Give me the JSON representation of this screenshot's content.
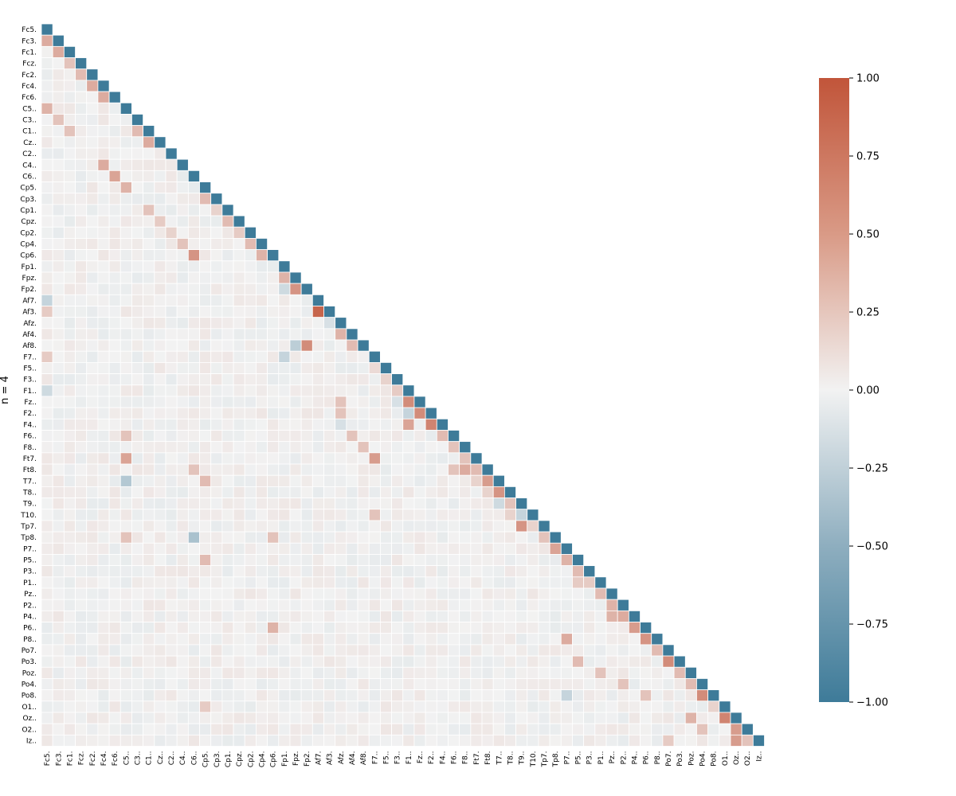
{
  "chart_data": {
    "type": "heatmap",
    "mask": "upper-triangle",
    "ylabel": "n = 4",
    "labels": [
      "Fc5.",
      "Fc3.",
      "Fc1.",
      "Fcz.",
      "Fc2.",
      "Fc4.",
      "Fc6.",
      "C5..",
      "C3..",
      "C1..",
      "Cz..",
      "C2..",
      "C4..",
      "C6..",
      "Cp5.",
      "Cp3.",
      "Cp1.",
      "Cpz.",
      "Cp2.",
      "Cp4.",
      "Cp6.",
      "Fp1.",
      "Fpz.",
      "Fp2.",
      "Af7.",
      "Af3.",
      "Afz.",
      "Af4.",
      "Af8.",
      "F7..",
      "F5..",
      "F3..",
      "F1..",
      "Fz..",
      "F2..",
      "F4..",
      "F6..",
      "F8..",
      "Ft7.",
      "Ft8.",
      "T7..",
      "T8..",
      "T9..",
      "T10.",
      "Tp7.",
      "Tp8.",
      "P7..",
      "P5..",
      "P3..",
      "P1..",
      "Pz..",
      "P2..",
      "P4..",
      "P6..",
      "P8..",
      "Po7.",
      "Po3.",
      "Poz.",
      "Po4.",
      "Po8.",
      "O1..",
      "Oz..",
      "O2..",
      "Iz.."
    ],
    "colorbar": {
      "min": -1.0,
      "max": 1.0,
      "ticks": [
        "1.00",
        "0.75",
        "0.50",
        "0.25",
        "0.00",
        "−0.25",
        "−0.50",
        "−0.75",
        "−1.00"
      ]
    },
    "colors": {
      "negative": "#3e7b99",
      "center": "#f2f2f2",
      "positive": "#c1553a"
    },
    "strong_values": [
      [
        1,
        0,
        0.45
      ],
      [
        2,
        1,
        0.45
      ],
      [
        3,
        2,
        0.3
      ],
      [
        4,
        3,
        0.35
      ],
      [
        5,
        4,
        0.45
      ],
      [
        6,
        5,
        0.45
      ],
      [
        7,
        0,
        0.4
      ],
      [
        8,
        1,
        0.3
      ],
      [
        9,
        2,
        0.3
      ],
      [
        9,
        8,
        0.35
      ],
      [
        10,
        9,
        0.45
      ],
      [
        12,
        5,
        0.45
      ],
      [
        13,
        6,
        0.5
      ],
      [
        14,
        7,
        0.4
      ],
      [
        15,
        14,
        0.35
      ],
      [
        16,
        9,
        0.3
      ],
      [
        16,
        15,
        0.2
      ],
      [
        17,
        10,
        0.25
      ],
      [
        17,
        16,
        0.35
      ],
      [
        18,
        11,
        0.2
      ],
      [
        18,
        17,
        0.25
      ],
      [
        19,
        12,
        0.3
      ],
      [
        19,
        18,
        0.35
      ],
      [
        20,
        13,
        0.6
      ],
      [
        20,
        19,
        0.4
      ],
      [
        22,
        21,
        0.4
      ],
      [
        23,
        21,
        -0.2
      ],
      [
        23,
        22,
        0.6
      ],
      [
        24,
        0,
        -0.25
      ],
      [
        25,
        24,
        0.9
      ],
      [
        25,
        0,
        0.25
      ],
      [
        26,
        25,
        -0.15
      ],
      [
        27,
        26,
        0.4
      ],
      [
        28,
        27,
        0.35
      ],
      [
        28,
        22,
        -0.3
      ],
      [
        28,
        23,
        0.65
      ],
      [
        29,
        0,
        0.25
      ],
      [
        29,
        21,
        -0.25
      ],
      [
        30,
        29,
        0.15
      ],
      [
        31,
        30,
        0.2
      ],
      [
        32,
        31,
        0.25
      ],
      [
        32,
        0,
        -0.2
      ],
      [
        33,
        32,
        0.65
      ],
      [
        33,
        26,
        0.3
      ],
      [
        33,
        31,
        -0.15
      ],
      [
        34,
        33,
        0.65
      ],
      [
        34,
        32,
        -0.25
      ],
      [
        34,
        26,
        0.3
      ],
      [
        35,
        34,
        0.7
      ],
      [
        35,
        32,
        0.5
      ],
      [
        35,
        26,
        -0.15
      ],
      [
        36,
        35,
        0.35
      ],
      [
        36,
        7,
        0.3
      ],
      [
        36,
        27,
        0.3
      ],
      [
        37,
        36,
        0.3
      ],
      [
        37,
        28,
        0.3
      ],
      [
        38,
        37,
        0.3
      ],
      [
        38,
        7,
        0.5
      ],
      [
        38,
        29,
        0.55
      ],
      [
        39,
        38,
        0.35
      ],
      [
        39,
        36,
        0.3
      ],
      [
        39,
        37,
        0.45
      ],
      [
        39,
        13,
        0.3
      ],
      [
        40,
        7,
        -0.35
      ],
      [
        40,
        14,
        0.35
      ],
      [
        40,
        39,
        0.55
      ],
      [
        40,
        38,
        0.2
      ],
      [
        41,
        40,
        0.6
      ],
      [
        41,
        39,
        0.2
      ],
      [
        42,
        41,
        0.3
      ],
      [
        42,
        40,
        -0.2
      ],
      [
        43,
        42,
        -0.25
      ],
      [
        43,
        41,
        0.2
      ],
      [
        43,
        29,
        0.3
      ],
      [
        44,
        42,
        0.6
      ],
      [
        44,
        43,
        0.2
      ],
      [
        45,
        44,
        0.3
      ],
      [
        45,
        13,
        -0.4
      ],
      [
        45,
        20,
        0.3
      ],
      [
        45,
        7,
        0.3
      ],
      [
        46,
        45,
        0.5
      ],
      [
        47,
        46,
        0.4
      ],
      [
        47,
        14,
        0.35
      ],
      [
        47,
        46,
        0.4
      ],
      [
        48,
        47,
        0.35
      ],
      [
        49,
        47,
        0.25
      ],
      [
        49,
        48,
        0.25
      ],
      [
        50,
        49,
        0.35
      ],
      [
        51,
        50,
        0.4
      ],
      [
        52,
        51,
        0.45
      ],
      [
        52,
        50,
        0.4
      ],
      [
        53,
        52,
        0.55
      ],
      [
        53,
        20,
        0.4
      ],
      [
        54,
        53,
        0.6
      ],
      [
        54,
        46,
        0.45
      ],
      [
        55,
        54,
        0.35
      ],
      [
        56,
        55,
        0.65
      ],
      [
        56,
        47,
        0.35
      ],
      [
        57,
        56,
        0.35
      ],
      [
        57,
        49,
        0.3
      ],
      [
        58,
        57,
        0.35
      ],
      [
        58,
        51,
        0.3
      ],
      [
        59,
        58,
        0.65
      ],
      [
        59,
        53,
        0.3
      ],
      [
        59,
        46,
        -0.25
      ],
      [
        60,
        59,
        0.2
      ],
      [
        60,
        14,
        0.25
      ],
      [
        61,
        60,
        0.7
      ],
      [
        61,
        57,
        0.4
      ],
      [
        62,
        61,
        0.55
      ],
      [
        62,
        58,
        0.3
      ],
      [
        63,
        62,
        0.3
      ],
      [
        63,
        61,
        0.55
      ],
      [
        63,
        55,
        0.25
      ]
    ]
  }
}
